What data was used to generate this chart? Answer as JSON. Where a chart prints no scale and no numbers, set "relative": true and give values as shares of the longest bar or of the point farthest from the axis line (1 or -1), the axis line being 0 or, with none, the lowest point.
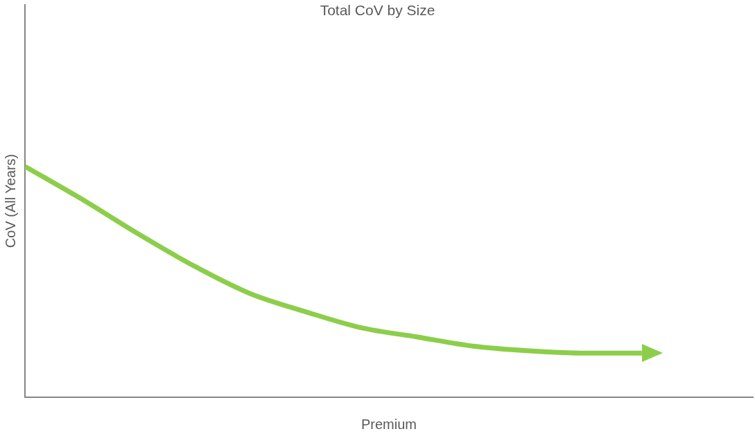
{
  "chart_data": {
    "type": "line",
    "title": "Total CoV by Size",
    "xlabel": "Premium",
    "ylabel": "CoV (All Years)",
    "relative": true,
    "grid": false,
    "legend": false,
    "marker": "none",
    "line_style": "solid",
    "categories": [
      null,
      null,
      null,
      null,
      null,
      null,
      null,
      null,
      null,
      null,
      null,
      null
    ],
    "series": [
      {
        "color": "#8cce4a",
        "values": [
          1,
          0.86,
          0.71,
          0.57,
          0.45,
          0.37,
          0.3,
          0.26,
          0.22,
          0.2,
          0.19,
          0.19
        ]
      }
    ]
  }
}
